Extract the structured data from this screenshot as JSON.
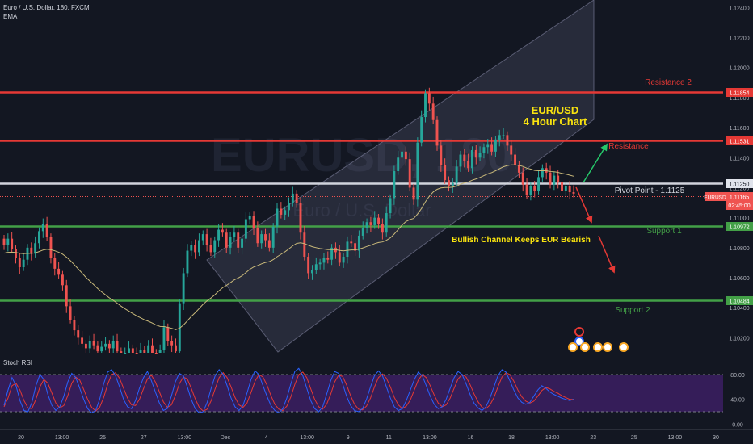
{
  "header": {
    "symbol_line": "Euro / U.S. Dollar, 180, FXCM",
    "indicator": "EMA"
  },
  "watermark": {
    "main": "EURUSD, 180",
    "sub": "Euro / U.S. Dollar"
  },
  "annotations": {
    "title_line1": "EUR/USD",
    "title_line2": "4 Hour Chart",
    "subtitle": "Bullish Channel Keeps EUR Bearish",
    "resistance2": "Resistance 2",
    "resistance": "Resistance",
    "pivot": "Pivot Point - 1.1125",
    "support1": "Support 1",
    "support2": "Support 2"
  },
  "price_badges": {
    "r2": "1.11854",
    "r1": "1.11531",
    "pivot": "1.11250",
    "current_symbol": "EURUSD",
    "current": "1.11165",
    "countdown": "02:45:00",
    "s1": "1.10972",
    "s2": "1.10484"
  },
  "colors": {
    "background": "#131722",
    "up": "#26a69a",
    "down": "#ef5350",
    "resistance": "#e53935",
    "support": "#43a047",
    "pivot": "#d1d4dc",
    "ema": "#c9b97a",
    "channel": "#9598b8",
    "stoch_k": "#2962ff",
    "stoch_d": "#e53935",
    "stoch_band": "#3c1f63",
    "arrow_up": "#26c76a",
    "arrow_down": "#e53935"
  },
  "lower_pane": {
    "title": "Stoch RSI",
    "ticks": [
      "80.00",
      "40.00",
      "0.00"
    ]
  },
  "chart_data": {
    "type": "candlestick",
    "timeframe": "180",
    "y_ticks": [
      "1.12400",
      "1.12200",
      "1.12000",
      "1.11800",
      "1.11600",
      "1.11400",
      "1.11200",
      "1.11000",
      "1.10800",
      "1.10600",
      "1.10400",
      "1.10200"
    ],
    "x_ticks": [
      "20",
      "13:00",
      "25",
      "27",
      "13:00",
      "Dec",
      "4",
      "13:00",
      "9",
      "11",
      "13:00",
      "16",
      "18",
      "13:00",
      "23",
      "25",
      "13:00",
      "30"
    ],
    "ylim": [
      1.101,
      1.1245
    ],
    "levels": [
      {
        "name": "Resistance 2",
        "value": 1.11854
      },
      {
        "name": "Resistance",
        "value": 1.11531
      },
      {
        "name": "Pivot Point",
        "value": 1.1125
      },
      {
        "name": "Support 1",
        "value": 1.10972
      },
      {
        "name": "Support 2",
        "value": 1.10484
      }
    ],
    "closes": [
      1.1082,
      1.1086,
      1.1079,
      1.1073,
      1.1067,
      1.1072,
      1.108,
      1.1076,
      1.1083,
      1.1091,
      1.1096,
      1.1087,
      1.1073,
      1.1066,
      1.1062,
      1.1055,
      1.1041,
      1.1032,
      1.1025,
      1.102,
      1.1016,
      1.1013,
      1.1018,
      1.1015,
      1.1011,
      1.1014,
      1.1016,
      1.1013,
      1.1018,
      1.1011,
      1.1008,
      1.101,
      1.1013,
      1.101,
      1.1008,
      1.1012,
      1.101,
      1.1015,
      1.101,
      1.1007,
      1.1012,
      1.1027,
      1.1018,
      1.1015,
      1.1011,
      1.1043,
      1.1063,
      1.1078,
      1.1082,
      1.1077,
      1.1085,
      1.1089,
      1.1082,
      1.1077,
      1.1085,
      1.1092,
      1.109,
      1.108,
      1.1087,
      1.109,
      1.108,
      1.1086,
      1.1099,
      1.1101,
      1.1093,
      1.1083,
      1.1089,
      1.1085,
      1.108,
      1.1094,
      1.1106,
      1.1102,
      1.1105,
      1.111,
      1.1116,
      1.111,
      1.109,
      1.1074,
      1.1063,
      1.1065,
      1.1069,
      1.107,
      1.1073,
      1.1072,
      1.108,
      1.1077,
      1.107,
      1.1074,
      1.1084,
      1.1083,
      1.1078,
      1.1088,
      1.1093,
      1.1097,
      1.1095,
      1.11,
      1.1096,
      1.109,
      1.1103,
      1.1113,
      1.1131,
      1.114,
      1.1144,
      1.1139,
      1.112,
      1.1112,
      1.115,
      1.1167,
      1.1183,
      1.1176,
      1.1165,
      1.1148,
      1.1135,
      1.1125,
      1.1121,
      1.1123,
      1.1134,
      1.1142,
      1.1138,
      1.1133,
      1.1145,
      1.114,
      1.1143,
      1.1147,
      1.1149,
      1.1144,
      1.1152,
      1.1155,
      1.1155,
      1.1148,
      1.1142,
      1.1135,
      1.113,
      1.1122,
      1.1115,
      1.1121,
      1.1118,
      1.1127,
      1.1133,
      1.113,
      1.1122,
      1.1128,
      1.1124,
      1.1118,
      1.1121,
      1.1117,
      1.1116
    ],
    "ema_period": 34,
    "stoch_rsi": {
      "k": [
        30,
        55,
        75,
        62,
        38,
        22,
        20,
        35,
        62,
        80,
        72,
        48,
        30,
        22,
        28,
        45,
        68,
        82,
        75,
        58,
        40,
        25,
        18,
        22,
        40,
        65,
        84,
        88,
        78,
        60,
        40,
        28,
        25,
        38,
        58,
        75,
        85,
        70,
        52,
        34,
        22,
        25,
        45,
        68,
        82,
        78,
        60,
        40,
        25,
        18,
        20,
        35,
        58,
        78,
        88,
        80,
        62,
        42,
        28,
        22,
        30,
        50,
        72,
        86,
        80,
        62,
        45,
        30,
        22,
        18,
        25,
        42,
        65,
        85,
        90,
        78,
        58,
        38,
        25,
        20,
        28,
        48,
        70,
        85,
        82,
        65,
        45,
        30,
        22,
        20,
        25,
        40,
        60,
        78,
        86,
        78,
        60,
        42,
        28,
        22,
        25,
        38,
        55,
        72,
        84,
        78,
        62,
        45,
        32,
        25,
        28,
        40,
        58,
        75,
        85,
        80,
        65,
        48,
        34,
        26,
        22,
        28,
        42,
        60,
        78,
        88,
        84,
        70,
        55,
        42,
        35,
        32,
        35,
        45,
        55,
        62,
        58,
        52,
        48,
        45,
        42,
        40,
        38,
        40
      ],
      "d": [
        28,
        42,
        62,
        66,
        55,
        38,
        26,
        25,
        40,
        60,
        72,
        66,
        50,
        34,
        26,
        30,
        46,
        66,
        76,
        71,
        56,
        40,
        27,
        21,
        27,
        43,
        64,
        80,
        83,
        74,
        58,
        42,
        31,
        30,
        40,
        57,
        73,
        79,
        68,
        52,
        36,
        27,
        31,
        46,
        65,
        76,
        73,
        58,
        41,
        27,
        21,
        24,
        38,
        57,
        75,
        83,
        75,
        60,
        43,
        31,
        27,
        34,
        51,
        69,
        80,
        76,
        63,
        46,
        32,
        24,
        22,
        29,
        44,
        64,
        80,
        84,
        75,
        57,
        40,
        28,
        24,
        32,
        48,
        68,
        79,
        77,
        63,
        46,
        32,
        24,
        23,
        29,
        42,
        60,
        75,
        81,
        74,
        60,
        43,
        31,
        25,
        29,
        39,
        55,
        71,
        80,
        75,
        62,
        47,
        34,
        28,
        31,
        42,
        58,
        73,
        80,
        76,
        64,
        49,
        36,
        27,
        25,
        31,
        43,
        60,
        76,
        83,
        80,
        69,
        55,
        44,
        37,
        34,
        37,
        45,
        54,
        59,
        57,
        53,
        50,
        46,
        43,
        40,
        40
      ]
    }
  }
}
